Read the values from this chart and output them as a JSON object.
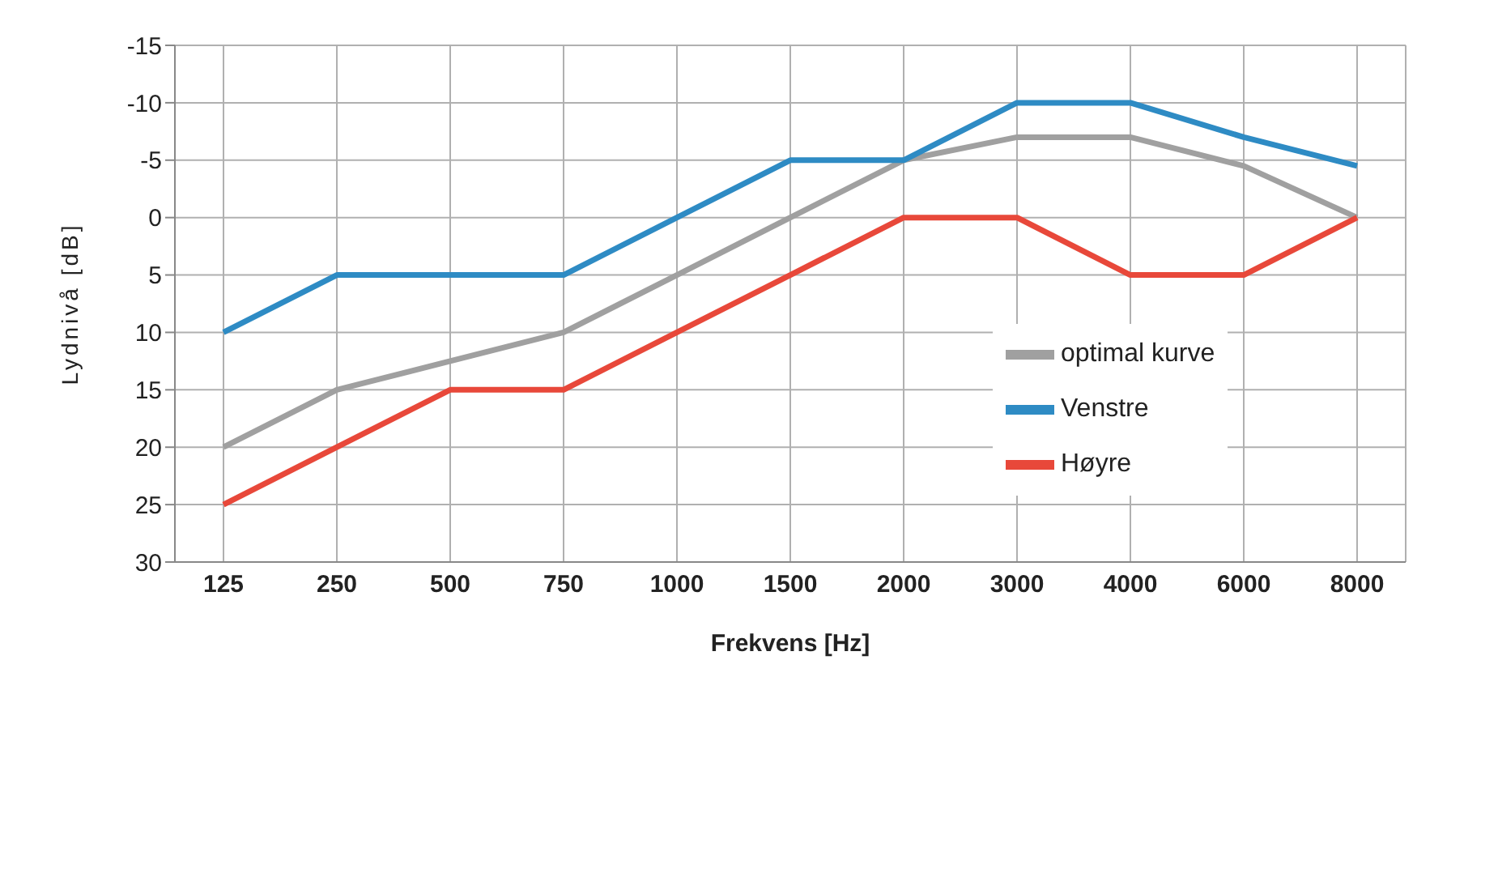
{
  "chart_data": {
    "type": "line",
    "xlabel": "Frekvens [Hz]",
    "ylabel": "Lydnivå [dB]",
    "categories": [
      "125",
      "250",
      "500",
      "750",
      "1000",
      "1500",
      "2000",
      "3000",
      "4000",
      "6000",
      "8000"
    ],
    "series": [
      {
        "name": "optimal kurve",
        "color": "#a0a0a0",
        "values": [
          20,
          15,
          12.5,
          10,
          5,
          0,
          -5,
          -7,
          -7,
          -4.5,
          0
        ]
      },
      {
        "name": "Venstre",
        "color": "#2e8bc4",
        "values": [
          10,
          5,
          5,
          5,
          0,
          -5,
          -5,
          -10,
          -10,
          -7,
          -4.5
        ]
      },
      {
        "name": "Høyre",
        "color": "#e8483a",
        "values": [
          25,
          20,
          15,
          15,
          10,
          5,
          0,
          0,
          5,
          5,
          0
        ]
      }
    ],
    "ylim": [
      30,
      -15
    ],
    "yticks": [
      30,
      25,
      20,
      15,
      10,
      5,
      0,
      -5,
      -10,
      -15
    ],
    "grid": true,
    "legend": "bottom right",
    "marker": "none",
    "line_style": "solid"
  }
}
